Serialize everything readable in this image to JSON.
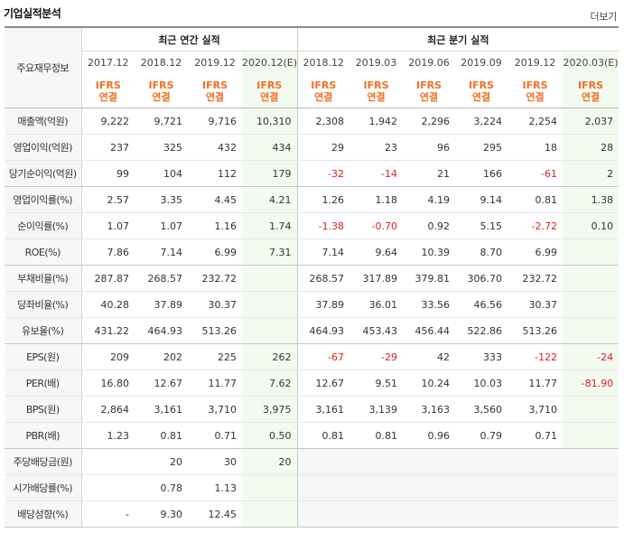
{
  "title": "기업실적분석",
  "more_label": "더보기",
  "corner_label": "주요재무정보",
  "annual_header": "최근 연간 실적",
  "quarter_header": "최근 분기 실적",
  "columns": [
    {
      "period": "2017.12",
      "std": "IFRS",
      "basis": "연결",
      "estimate": false
    },
    {
      "period": "2018.12",
      "std": "IFRS",
      "basis": "연결",
      "estimate": false
    },
    {
      "period": "2019.12",
      "std": "IFRS",
      "basis": "연결",
      "estimate": false
    },
    {
      "period": "2020.12(E)",
      "std": "IFRS",
      "basis": "연결",
      "estimate": true
    },
    {
      "period": "2018.12",
      "std": "IFRS",
      "basis": "연결",
      "estimate": false
    },
    {
      "period": "2019.03",
      "std": "IFRS",
      "basis": "연결",
      "estimate": false
    },
    {
      "period": "2019.06",
      "std": "IFRS",
      "basis": "연결",
      "estimate": false
    },
    {
      "period": "2019.09",
      "std": "IFRS",
      "basis": "연결",
      "estimate": false
    },
    {
      "period": "2019.12",
      "std": "IFRS",
      "basis": "연결",
      "estimate": false
    },
    {
      "period": "2020.03(E)",
      "std": "IFRS",
      "basis": "연결",
      "estimate": true
    }
  ],
  "rows": [
    {
      "label": "매출액(억원)",
      "values": [
        "9,222",
        "9,721",
        "9,716",
        "10,310",
        "2,308",
        "1,942",
        "2,296",
        "3,224",
        "2,254",
        "2,037"
      ]
    },
    {
      "label": "영업이익(억원)",
      "values": [
        "237",
        "325",
        "432",
        "434",
        "29",
        "23",
        "96",
        "295",
        "18",
        "28"
      ]
    },
    {
      "label": "당기순이익(억원)",
      "values": [
        "99",
        "104",
        "112",
        "179",
        "-32",
        "-14",
        "21",
        "166",
        "-61",
        "2"
      ],
      "group_end": true
    },
    {
      "label": "영업이익률(%)",
      "values": [
        "2.57",
        "3.35",
        "4.45",
        "4.21",
        "1.26",
        "1.18",
        "4.19",
        "9.14",
        "0.81",
        "1.38"
      ]
    },
    {
      "label": "순이익률(%)",
      "values": [
        "1.07",
        "1.07",
        "1.16",
        "1.74",
        "-1.38",
        "-0.70",
        "0.92",
        "5.15",
        "-2.72",
        "0.10"
      ]
    },
    {
      "label": "ROE(%)",
      "values": [
        "7.86",
        "7.14",
        "6.99",
        "7.31",
        "7.14",
        "9.64",
        "10.39",
        "8.70",
        "6.99",
        ""
      ],
      "group_end": true
    },
    {
      "label": "부채비율(%)",
      "values": [
        "287.87",
        "268.57",
        "232.72",
        "",
        "268.57",
        "317.89",
        "379.81",
        "306.70",
        "232.72",
        ""
      ]
    },
    {
      "label": "당좌비율(%)",
      "values": [
        "40.28",
        "37.89",
        "30.37",
        "",
        "37.89",
        "36.01",
        "33.56",
        "46.56",
        "30.37",
        ""
      ]
    },
    {
      "label": "유보율(%)",
      "values": [
        "431.22",
        "464.93",
        "513.26",
        "",
        "464.93",
        "453.43",
        "456.44",
        "522.86",
        "513.26",
        ""
      ],
      "group_end": true
    },
    {
      "label": "EPS(원)",
      "values": [
        "209",
        "202",
        "225",
        "262",
        "-67",
        "-29",
        "42",
        "333",
        "-122",
        "-24"
      ]
    },
    {
      "label": "PER(배)",
      "values": [
        "16.80",
        "12.67",
        "11.77",
        "7.62",
        "12.67",
        "9.51",
        "10.24",
        "10.03",
        "11.77",
        "-81.90"
      ]
    },
    {
      "label": "BPS(원)",
      "values": [
        "2,864",
        "3,161",
        "3,710",
        "3,975",
        "3,161",
        "3,139",
        "3,163",
        "3,560",
        "3,710",
        ""
      ]
    },
    {
      "label": "PBR(배)",
      "values": [
        "1.23",
        "0.81",
        "0.71",
        "0.50",
        "0.81",
        "0.81",
        "0.96",
        "0.79",
        "0.71",
        ""
      ],
      "group_end": true
    },
    {
      "label": "주당배당금(원)",
      "values": [
        "",
        "20",
        "30",
        "20",
        "",
        "",
        "",
        "",
        "",
        ""
      ],
      "div": true
    },
    {
      "label": "시가배당률(%)",
      "values": [
        "",
        "0.78",
        "1.13",
        "",
        "",
        "",
        "",
        "",
        "",
        ""
      ],
      "div": true
    },
    {
      "label": "배당성향(%)",
      "values": [
        "-",
        "9.30",
        "12.45",
        "",
        "",
        "",
        "",
        "",
        "",
        ""
      ],
      "div": true
    }
  ],
  "colors": {
    "ifrs": "#f36f21",
    "negative": "#e02020",
    "estimate_bg": "#f3faef",
    "label_bg": "#f7f7f7"
  }
}
